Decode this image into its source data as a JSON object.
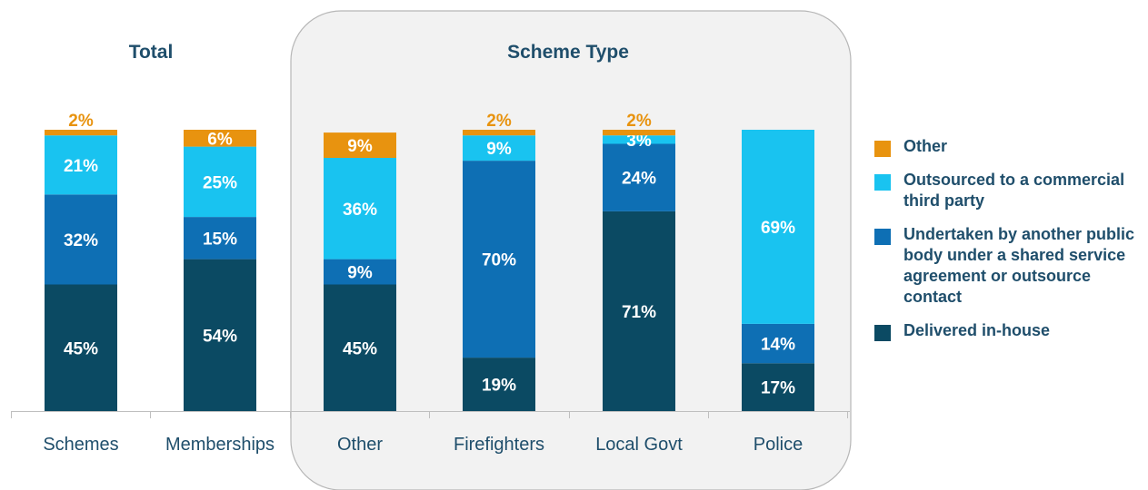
{
  "groups": {
    "total_title": "Total",
    "scheme_type_title": "Scheme Type"
  },
  "chart_data": {
    "type": "bar",
    "stacked": true,
    "categories": [
      "Schemes",
      "Memberships",
      "Other",
      "Firefighters",
      "Local Govt",
      "Police"
    ],
    "series": [
      {
        "name": "Delivered in-house",
        "color": "#0b4a63",
        "label_color": "#ffffff",
        "values": [
          45,
          54,
          45,
          19,
          71,
          17
        ]
      },
      {
        "name": "Undertaken by another public body under a shared service agreement or outsource contact",
        "color": "#0e6fb4",
        "label_color": "#ffffff",
        "values": [
          32,
          15,
          9,
          70,
          24,
          14
        ]
      },
      {
        "name": "Outsourced to a commercial third party",
        "color": "#19c3f0",
        "label_color": "#ffffff",
        "values": [
          21,
          25,
          36,
          9,
          3,
          69
        ]
      },
      {
        "name": "Other",
        "color": "#e8930f",
        "label_color": "#ffffff",
        "values": [
          2,
          6,
          9,
          2,
          2,
          0
        ]
      }
    ],
    "data_labels": [
      [
        "45%",
        "54%",
        "45%",
        "19%",
        "71%",
        "17%"
      ],
      [
        "32%",
        "15%",
        "9%",
        "70%",
        "24%",
        "14%"
      ],
      [
        "21%",
        "25%",
        "36%",
        "9%",
        "3%",
        "69%"
      ],
      [
        "2%",
        "6%",
        "9%",
        "2%",
        "2%",
        ""
      ]
    ],
    "outside_label_series": "Other",
    "outside_label_color": "#e8930f",
    "ylim": [
      0,
      100
    ],
    "grid": false,
    "legend_position": "right",
    "legend": [
      {
        "label": "Other",
        "color": "#e8930f"
      },
      {
        "label": "Outsourced to a commercial third party",
        "color": "#19c3f0"
      },
      {
        "label": "Undertaken by another public body under a shared service agreement or outsource contact",
        "color": "#0e6fb4"
      },
      {
        "label": "Delivered in-house",
        "color": "#0b4a63"
      }
    ]
  }
}
